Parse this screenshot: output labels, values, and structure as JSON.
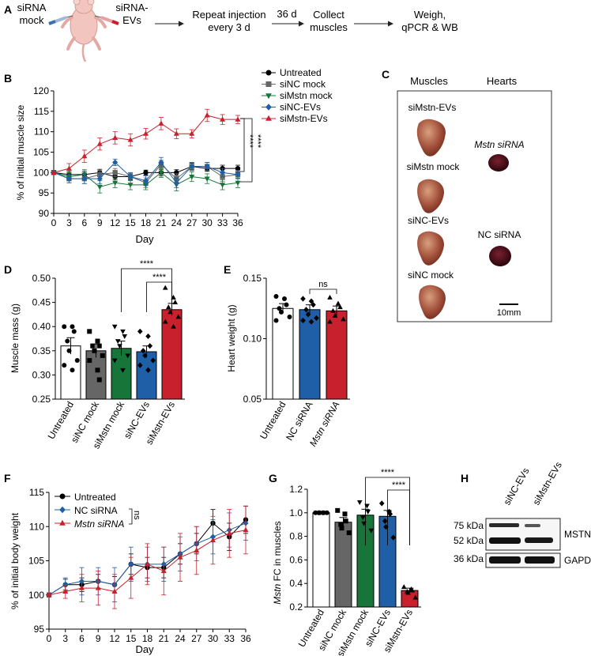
{
  "colors": {
    "untreated": "#000000",
    "sinc_mock": "#666666",
    "simstn_mock": "#17753a",
    "sinc_evs": "#1f5fa8",
    "simstn_evs": "#c8202c",
    "muscle": "#a2503a",
    "heart": "#3a0a12"
  },
  "panel_a": {
    "label": "A",
    "sirna_mock": [
      "siRNA",
      "mock"
    ],
    "sirna_evs": [
      "siRNA-",
      "EVs"
    ],
    "step_repeat": [
      "Repeat injection",
      "every 3 d"
    ],
    "interval": "36 d",
    "step_collect": [
      "Collect",
      "muscles"
    ],
    "step_final": [
      "Weigh,",
      "qPCR & WB"
    ],
    "mouse_icon": "mouse-icon",
    "syringe_icon": "syringe-icon"
  },
  "panel_c": {
    "label": "C",
    "col_muscles": "Muscles",
    "col_hearts": "Hearts",
    "muscle_labels": [
      "siMstn-EVs",
      "siMstn mock",
      "siNC-EVs",
      "siNC mock"
    ],
    "heart_labels": [
      "Mstn siRNA",
      "NC siRNA"
    ],
    "scale_bar": "10mm"
  },
  "chart_data": [
    {
      "id": "B",
      "type": "line",
      "panel_label": "B",
      "ylabel": "% of initial muscle size",
      "xlabel": "Day",
      "x": [
        0,
        3,
        6,
        9,
        12,
        15,
        18,
        21,
        24,
        27,
        30,
        33,
        36
      ],
      "xlim": [
        0,
        36
      ],
      "ylim": [
        90,
        120
      ],
      "yticks": [
        90,
        95,
        100,
        105,
        110,
        115,
        120
      ],
      "series": [
        {
          "name": "Untreated",
          "key": "untreated",
          "marker": "circle",
          "values": [
            100,
            99.5,
            99.5,
            100,
            99,
            99,
            100,
            100,
            100,
            101.5,
            101,
            101,
            101
          ],
          "err": [
            0.5,
            0.8,
            0.8,
            0.8,
            0.7,
            0.7,
            0.6,
            0.8,
            0.7,
            0.8,
            0.7,
            0.8,
            0.8
          ]
        },
        {
          "name": "siNC mock",
          "key": "sinc_mock",
          "marker": "square",
          "values": [
            100,
            98.5,
            98.5,
            99.5,
            100,
            99,
            97.5,
            102,
            98.5,
            101.5,
            101.5,
            99,
            99.5
          ],
          "err": [
            0.5,
            1.0,
            1.2,
            1.0,
            1.0,
            1.0,
            1.2,
            1.0,
            1.2,
            1.0,
            1.0,
            1.2,
            1.0
          ]
        },
        {
          "name": "siMstn mock",
          "key": "simstn_mock",
          "marker": "triangle-down",
          "values": [
            100,
            99,
            99.5,
            96.5,
            97.5,
            97,
            97,
            100,
            97,
            99,
            98.5,
            97,
            97.5
          ],
          "err": [
            0.5,
            1.0,
            1.2,
            1.5,
            1.2,
            1.2,
            1.2,
            1.2,
            1.5,
            1.2,
            1.2,
            1.2,
            1.2
          ]
        },
        {
          "name": "siNC-EVs",
          "key": "sinc_evs",
          "marker": "diamond",
          "values": [
            100,
            98.5,
            98.5,
            98.5,
            102.5,
            99,
            98,
            102.5,
            97.5,
            101.5,
            101.5,
            100,
            99.5
          ],
          "err": [
            0.5,
            1.0,
            1.2,
            1.2,
            0.8,
            1.0,
            1.2,
            1.2,
            1.2,
            1.0,
            1.0,
            1.0,
            1.0
          ]
        },
        {
          "name": "siMstn-EVs",
          "key": "simstn_evs",
          "marker": "triangle-up",
          "values": [
            100,
            101,
            104,
            107,
            108.5,
            108,
            109.5,
            112,
            109.5,
            109.5,
            114,
            113,
            113
          ],
          "err": [
            0.5,
            1.2,
            1.5,
            1.5,
            1.5,
            1.5,
            1.3,
            1.5,
            1.2,
            1.0,
            1.5,
            1.2,
            1.0
          ]
        }
      ],
      "sig": [
        "****",
        "****"
      ]
    },
    {
      "id": "D",
      "type": "bar",
      "panel_label": "D",
      "ylabel": "Muscle mass (g)",
      "categories": [
        "Untreated",
        "siNC mock",
        "siMstn mock",
        "siNC-EVs",
        "siMstn-EVs"
      ],
      "keys": [
        "untreated",
        "sinc_mock",
        "simstn_mock",
        "sinc_evs",
        "simstn_evs"
      ],
      "values": [
        0.36,
        0.35,
        0.355,
        0.348,
        0.435
      ],
      "err": [
        0.017,
        0.014,
        0.015,
        0.012,
        0.013
      ],
      "points": [
        [
          0.4,
          0.4,
          0.39,
          0.37,
          0.35,
          0.33,
          0.32,
          0.31
        ],
        [
          0.39,
          0.37,
          0.36,
          0.36,
          0.35,
          0.34,
          0.33,
          0.31,
          0.29
        ],
        [
          0.4,
          0.39,
          0.38,
          0.37,
          0.36,
          0.34,
          0.33,
          0.31
        ],
        [
          0.39,
          0.38,
          0.36,
          0.35,
          0.34,
          0.33,
          0.32,
          0.31
        ],
        [
          0.48,
          0.46,
          0.45,
          0.44,
          0.43,
          0.42,
          0.41,
          0.4
        ]
      ],
      "ylim": [
        0.25,
        0.5
      ],
      "yticks": [
        0.25,
        0.3,
        0.35,
        0.4,
        0.45,
        0.5
      ],
      "sig": [
        "****",
        "****"
      ]
    },
    {
      "id": "E",
      "type": "bar",
      "panel_label": "E",
      "ylabel": "Heart weight (g)",
      "categories": [
        "Untreated",
        "NC siRNA",
        "Mstn siRNA"
      ],
      "keys": [
        "untreated",
        "sinc_evs",
        "simstn_evs"
      ],
      "values": [
        0.125,
        0.124,
        0.123
      ],
      "err": [
        0.004,
        0.004,
        0.004
      ],
      "points": [
        [
          0.135,
          0.133,
          0.128,
          0.125,
          0.122,
          0.118,
          0.115
        ],
        [
          0.133,
          0.131,
          0.128,
          0.124,
          0.12,
          0.117,
          0.115,
          0.114
        ],
        [
          0.134,
          0.129,
          0.126,
          0.123,
          0.119,
          0.116,
          0.114
        ]
      ],
      "ylim": [
        0.05,
        0.15
      ],
      "yticks": [
        0.05,
        0.1,
        0.15
      ],
      "sig": [
        "ns"
      ]
    },
    {
      "id": "F",
      "type": "line",
      "panel_label": "F",
      "ylabel": "% of initial body weight",
      "xlabel": "Day",
      "x": [
        0,
        3,
        6,
        9,
        12,
        15,
        18,
        21,
        24,
        27,
        30,
        33,
        36
      ],
      "xlim": [
        0,
        36
      ],
      "ylim": [
        95,
        115
      ],
      "yticks": [
        95,
        100,
        105,
        110,
        115
      ],
      "series": [
        {
          "name": "Untreated",
          "key": "untreated",
          "marker": "circle",
          "values": [
            100,
            101.5,
            101.5,
            102,
            101.5,
            104.5,
            104,
            104,
            106,
            107.5,
            110.5,
            108.5,
            111
          ],
          "err": [
            0.3,
            0.8,
            1.0,
            1.0,
            1.2,
            1.5,
            1.5,
            1.5,
            1.5,
            1.5,
            2.0,
            2.0,
            2.0
          ]
        },
        {
          "name": "NC siRNA",
          "key": "sinc_evs",
          "marker": "diamond",
          "values": [
            100,
            101.5,
            102,
            102,
            101.5,
            104.5,
            104.5,
            104.5,
            106,
            107.5,
            108.5,
            109.5,
            110.5
          ],
          "err": [
            0.3,
            1.0,
            2.0,
            2.0,
            2.5,
            2.5,
            2.5,
            2.5,
            2.5,
            2.5,
            2.5,
            2.5,
            2.5
          ]
        },
        {
          "name": "Mstn siRNA",
          "key": "simstn_evs",
          "marker": "triangle-up",
          "values": [
            100,
            100.5,
            101,
            101,
            100.5,
            102.5,
            104.5,
            103.5,
            105.5,
            106.5,
            108,
            109,
            109.5
          ],
          "err": [
            0.3,
            1.0,
            2.0,
            2.5,
            2.5,
            3.0,
            3.0,
            3.5,
            3.5,
            3.5,
            3.5,
            3.5,
            3.5
          ]
        }
      ],
      "sig": [
        "ns"
      ]
    },
    {
      "id": "G",
      "type": "bar",
      "panel_label": "G",
      "ylabel_gene": "Mstn",
      "ylabel_rest": " FC in muscles",
      "categories": [
        "Untreated",
        "siNC mock",
        "siMstn mock",
        "siNC-EVs",
        "siMstn-EVs"
      ],
      "keys": [
        "untreated",
        "sinc_mock",
        "simstn_mock",
        "sinc_evs",
        "simstn_evs"
      ],
      "values": [
        1.0,
        0.92,
        0.98,
        0.97,
        0.34
      ],
      "err": [
        0.01,
        0.04,
        0.05,
        0.05,
        0.02
      ],
      "points": [
        [
          1.0,
          1.0,
          1.0,
          1.0,
          1.0,
          1.0
        ],
        [
          1.02,
          0.99,
          0.93,
          0.9,
          0.87,
          0.83
        ],
        [
          1.09,
          1.06,
          1.01,
          0.96,
          0.91,
          0.85
        ],
        [
          1.08,
          1.01,
          0.99,
          0.93,
          0.88,
          0.79
        ],
        [
          0.37,
          0.35,
          0.34,
          0.33,
          0.32,
          0.28
        ]
      ],
      "ylim": [
        0.2,
        1.2
      ],
      "yticks": [
        0.2,
        0.4,
        0.6,
        0.8,
        1.0,
        1.2
      ],
      "sig": [
        "****",
        "****"
      ]
    }
  ],
  "panel_h": {
    "label": "H",
    "lane_labels": [
      "siNC-EVs",
      "siMstn-EVs"
    ],
    "kda": [
      "75 kDa",
      "52 kDa",
      "36 kDa"
    ],
    "proteins": [
      "MSTN",
      "GAPDH"
    ]
  }
}
